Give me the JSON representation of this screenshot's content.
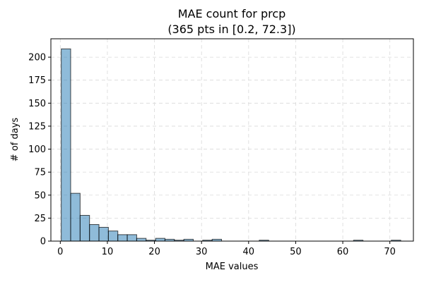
{
  "chart_data": {
    "type": "bar",
    "title": "MAE count for prcp",
    "subtitle": "(365 pts in [0.2, 72.3])",
    "xlabel": "MAE values",
    "ylabel": "# of days",
    "xlim": [
      -2.0,
      75.0
    ],
    "ylim": [
      0,
      220
    ],
    "xticks": [
      0,
      10,
      20,
      30,
      40,
      50,
      60,
      70
    ],
    "yticks": [
      0,
      25,
      50,
      75,
      100,
      125,
      150,
      175,
      200
    ],
    "grid": true,
    "bin_start": 0.2,
    "bin_width": 2.003,
    "counts": [
      209,
      52,
      28,
      18,
      15,
      11,
      7,
      7,
      3,
      1,
      3,
      2,
      1,
      2,
      0,
      1,
      2,
      0,
      0,
      0,
      0,
      1,
      0,
      0,
      0,
      0,
      0,
      0,
      0,
      0,
      0,
      1,
      0,
      0,
      0,
      1
    ]
  }
}
